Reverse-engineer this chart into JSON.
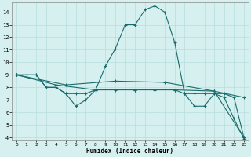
{
  "xlabel": "Humidex (Indice chaleur)",
  "background_color": "#d6f0f0",
  "grid_color": "#b8dcdc",
  "line_color": "#1a6b6b",
  "xlim": [
    -0.5,
    23.5
  ],
  "ylim": [
    3.8,
    14.8
  ],
  "yticks": [
    4,
    5,
    6,
    7,
    8,
    9,
    10,
    11,
    12,
    13,
    14
  ],
  "xticks": [
    0,
    1,
    2,
    3,
    4,
    5,
    6,
    7,
    8,
    9,
    10,
    11,
    12,
    13,
    14,
    15,
    16,
    17,
    18,
    19,
    20,
    21,
    22,
    23
  ],
  "line1_x": [
    0,
    1,
    2,
    3,
    4,
    5,
    6,
    7,
    8,
    9,
    10,
    11,
    12,
    13,
    14,
    15,
    16,
    17,
    18,
    19,
    20,
    21,
    22,
    23
  ],
  "line1_y": [
    9.0,
    9.0,
    9.0,
    8.0,
    8.0,
    7.5,
    7.5,
    7.5,
    7.8,
    9.7,
    11.1,
    13.0,
    13.0,
    14.2,
    14.5,
    14.0,
    11.6,
    7.5,
    7.5,
    7.5,
    7.5,
    7.2,
    5.5,
    3.9
  ],
  "line2_x": [
    0,
    2,
    3,
    4,
    5,
    6,
    7,
    8,
    10,
    12,
    14,
    16,
    17,
    18,
    19,
    20,
    21,
    22,
    23
  ],
  "line2_y": [
    9.0,
    9.0,
    8.0,
    8.0,
    7.5,
    6.5,
    7.0,
    7.8,
    7.8,
    7.8,
    7.8,
    7.8,
    7.5,
    6.5,
    6.5,
    7.5,
    7.5,
    7.2,
    4.0
  ],
  "line3_x": [
    0,
    5,
    10,
    15,
    20,
    23
  ],
  "line3_y": [
    9.0,
    8.2,
    8.5,
    8.4,
    7.7,
    4.0
  ],
  "line4_x": [
    0,
    4,
    8,
    12,
    16,
    20,
    23
  ],
  "line4_y": [
    9.0,
    8.2,
    7.8,
    7.8,
    7.8,
    7.7,
    7.2
  ]
}
